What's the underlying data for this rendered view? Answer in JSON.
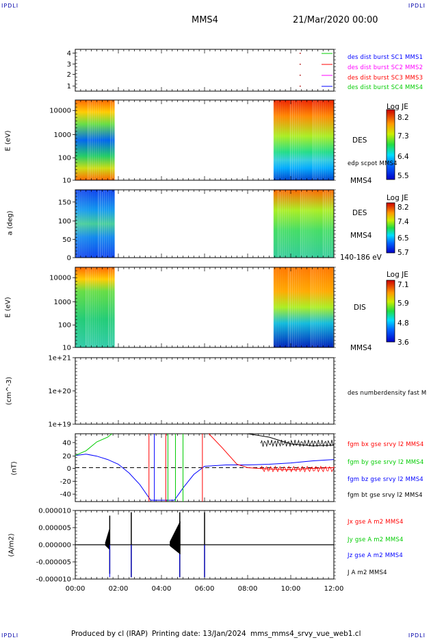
{
  "corners": {
    "tl": "IPDLI",
    "tr": "IPDLI",
    "bl": "IPDLI",
    "br": "IPDLI"
  },
  "header": {
    "spacecraft": "MMS4",
    "date": "21/Mar/2020 00:00"
  },
  "colors": {
    "blue": "#0000ff",
    "red": "#ff0000",
    "green": "#00cc00",
    "magenta": "#ff00ff",
    "black": "#000000"
  },
  "chart_data": [
    {
      "type": "scatter",
      "panel": "spacecraft-availability",
      "yticks": [
        "4",
        "3",
        "2",
        "1"
      ],
      "legend": [
        {
          "name": "des dist burst SC1 MMS1",
          "color": "#0000ff"
        },
        {
          "name": "des dist burst SC2 MMS2",
          "color": "#ff00ff"
        },
        {
          "name": "des dist burst SC3 MMS3",
          "color": "#ff0000"
        },
        {
          "name": "des dist burst SC4 MMS4",
          "color": "#00cc00"
        }
      ]
    },
    {
      "type": "heatmap",
      "panel": "des-energy",
      "ylabel": "E (eV)",
      "yticks": [
        "10000",
        "1000",
        "100",
        "10"
      ],
      "yscale": "log",
      "ylim": [
        10,
        30000
      ],
      "data_intervals_hours": [
        [
          0.0,
          1.83
        ],
        [
          9.2,
          12.0
        ]
      ],
      "label": "DES",
      "sublabel": "edp scpot MMS4",
      "sc_label": "MMS4",
      "colorbar": {
        "title": "Log JE",
        "ticks": [
          "8.2",
          "7.3",
          "6.4",
          "5.5"
        ]
      }
    },
    {
      "type": "heatmap",
      "panel": "des-pitch",
      "ylabel": "a (deg)",
      "yticks": [
        "150",
        "100",
        "50",
        "0"
      ],
      "ylim": [
        0,
        180
      ],
      "data_intervals_hours": [
        [
          0.0,
          1.83
        ],
        [
          9.2,
          12.0
        ]
      ],
      "label": "DES",
      "sc_label": "MMS4",
      "energy_range": "140-186 eV",
      "colorbar": {
        "title": "Log JE",
        "ticks": [
          "8.2",
          "7.4",
          "6.5",
          "5.7"
        ]
      }
    },
    {
      "type": "heatmap",
      "panel": "dis-energy",
      "ylabel": "E (eV)",
      "yticks": [
        "10000",
        "1000",
        "100",
        "10"
      ],
      "yscale": "log",
      "ylim": [
        10,
        30000
      ],
      "data_intervals_hours": [
        [
          0.0,
          1.83
        ],
        [
          9.2,
          12.0
        ]
      ],
      "label": "DIS",
      "sc_label": "MMS4",
      "colorbar": {
        "title": "Log JE",
        "ticks": [
          "7.1",
          "5.9",
          "4.8",
          "3.6"
        ]
      }
    },
    {
      "type": "line",
      "panel": "density",
      "ylabel": "(cm^-3)",
      "yticks": [
        "1e+21",
        "1e+20",
        "1e+19"
      ],
      "yscale": "log",
      "ylim": [
        1e+19,
        1e+21
      ],
      "legend": [
        {
          "name": "des numberdensity fast M",
          "color": "#000000"
        }
      ]
    },
    {
      "type": "line",
      "panel": "fgm",
      "ylabel": "(nT)",
      "yticks": [
        "40",
        "20",
        "0",
        "-20",
        "-40"
      ],
      "ylim": [
        -50,
        50
      ],
      "legend": [
        {
          "name": "fgm bx gse srvy l2 MMS4",
          "color": "#ff0000"
        },
        {
          "name": "fgm by gse srvy l2 MMS4",
          "color": "#00cc00"
        },
        {
          "name": "fgm bz gse srvy l2 MMS4",
          "color": "#0000ff"
        },
        {
          "name": "fgm bt gse srvy l2 MMS4",
          "color": "#000000"
        }
      ],
      "series": [
        {
          "name": "bz",
          "x": [
            0.0,
            0.5,
            1.0,
            1.5,
            2.0,
            2.5,
            3.0,
            3.5,
            4.6,
            5.0,
            5.5,
            6.0,
            6.5,
            7.0,
            8.0,
            9.0,
            10.0,
            11.0,
            12.0
          ],
          "values": [
            18,
            20,
            17,
            12,
            5,
            -8,
            -25,
            -48,
            -48,
            -30,
            -10,
            2,
            3,
            4,
            4,
            5,
            7,
            10,
            12
          ]
        },
        {
          "name": "by",
          "x": [
            0.0,
            0.5,
            1.0,
            1.5,
            1.7
          ],
          "values": [
            18,
            25,
            38,
            45,
            50
          ]
        },
        {
          "name": "bt",
          "x": [
            8.0,
            9.0,
            10.0,
            11.0,
            12.0
          ],
          "values": [
            50,
            45,
            35,
            32,
            33
          ]
        },
        {
          "name": "bx",
          "x": [
            6.2,
            6.8,
            7.5,
            8.0,
            9.0,
            10.0,
            11.0,
            12.0
          ],
          "values": [
            50,
            30,
            5,
            0,
            -2,
            -3,
            -1,
            0
          ]
        }
      ]
    },
    {
      "type": "line",
      "panel": "current",
      "ylabel": "(A/m2)",
      "yticks": [
        "0.000010",
        "0.000005",
        "0.000000",
        "-0.000005",
        "-0.000010"
      ],
      "ylim": [
        -1e-05,
        1e-05
      ],
      "legend": [
        {
          "name": "Jx gse A m2 MMS4",
          "color": "#ff0000"
        },
        {
          "name": "Jy gse A m2 MMS4",
          "color": "#00cc00"
        },
        {
          "name": "Jz gse A m2 MMS4",
          "color": "#0000ff"
        },
        {
          "name": "J A m2 MMS4",
          "color": "#000000"
        }
      ],
      "spikes_hours": [
        1.6,
        2.6,
        4.85,
        6.0
      ]
    }
  ],
  "xaxis": {
    "ticks": [
      "00:00",
      "02:00",
      "04:00",
      "06:00",
      "08:00",
      "10:00",
      "12:00"
    ],
    "range_hours": [
      0,
      12
    ]
  },
  "footer": {
    "produced": "Produced by cl (IRAP)",
    "printing": "Printing date: 13/Jan/2024",
    "file": "mms_mms4_srvy_vue_web1.cl"
  }
}
